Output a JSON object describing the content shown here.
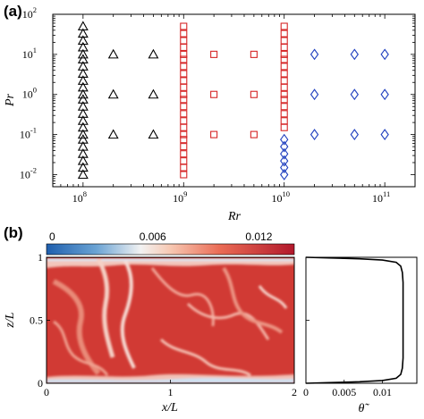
{
  "panel_a_label": "(a)",
  "panel_b_label": "(b)",
  "chart_data": [
    {
      "type": "scatter",
      "xlabel": "Rr",
      "ylabel": "Pr",
      "xscale": "log",
      "yscale": "log",
      "xlim": [
        50000000.0,
        200000000000.0
      ],
      "ylim": [
        0.005,
        100
      ],
      "x_ticks": [
        {
          "exp": "8",
          "value": 100000000.0
        },
        {
          "exp": "9",
          "value": 1000000000.0
        },
        {
          "exp": "10",
          "value": 10000000000.0
        },
        {
          "exp": "11",
          "value": 100000000000.0
        }
      ],
      "y_ticks": [
        {
          "exp": "-2",
          "value": 0.01
        },
        {
          "exp": "-1",
          "value": 0.1
        },
        {
          "exp": "0",
          "value": 1
        },
        {
          "exp": "1",
          "value": 10
        },
        {
          "exp": "2",
          "value": 100
        }
      ],
      "tick_base": "10",
      "grid": false,
      "series": [
        {
          "marker": "triangle",
          "color": "#000000",
          "points": [
            [
              100000000.0,
              0.01
            ],
            [
              100000000.0,
              0.015
            ],
            [
              100000000.0,
              0.022
            ],
            [
              100000000.0,
              0.033
            ],
            [
              100000000.0,
              0.05
            ],
            [
              100000000.0,
              0.075
            ],
            [
              100000000.0,
              0.1
            ],
            [
              100000000.0,
              0.15
            ],
            [
              100000000.0,
              0.22
            ],
            [
              100000000.0,
              0.33
            ],
            [
              100000000.0,
              0.5
            ],
            [
              100000000.0,
              0.75
            ],
            [
              100000000.0,
              1
            ],
            [
              100000000.0,
              1.5
            ],
            [
              100000000.0,
              2.2
            ],
            [
              100000000.0,
              3.3
            ],
            [
              100000000.0,
              5
            ],
            [
              100000000.0,
              7.5
            ],
            [
              100000000.0,
              10
            ],
            [
              100000000.0,
              15
            ],
            [
              100000000.0,
              22
            ],
            [
              100000000.0,
              33
            ],
            [
              100000000.0,
              50
            ],
            [
              200000000.0,
              0.1
            ],
            [
              200000000.0,
              1
            ],
            [
              200000000.0,
              10
            ],
            [
              500000000.0,
              0.1
            ],
            [
              500000000.0,
              1
            ],
            [
              500000000.0,
              10
            ]
          ]
        },
        {
          "marker": "square",
          "color": "#d62728",
          "points": [
            [
              1000000000.0,
              0.01
            ],
            [
              1000000000.0,
              0.015
            ],
            [
              1000000000.0,
              0.022
            ],
            [
              1000000000.0,
              0.033
            ],
            [
              1000000000.0,
              0.05
            ],
            [
              1000000000.0,
              0.075
            ],
            [
              1000000000.0,
              0.1
            ],
            [
              1000000000.0,
              0.15
            ],
            [
              1000000000.0,
              0.22
            ],
            [
              1000000000.0,
              0.33
            ],
            [
              1000000000.0,
              0.5
            ],
            [
              1000000000.0,
              0.75
            ],
            [
              1000000000.0,
              1
            ],
            [
              1000000000.0,
              1.5
            ],
            [
              1000000000.0,
              2.2
            ],
            [
              1000000000.0,
              3.3
            ],
            [
              1000000000.0,
              5
            ],
            [
              1000000000.0,
              7.5
            ],
            [
              1000000000.0,
              10
            ],
            [
              1000000000.0,
              15
            ],
            [
              1000000000.0,
              22
            ],
            [
              1000000000.0,
              33
            ],
            [
              1000000000.0,
              50
            ],
            [
              2000000000.0,
              0.1
            ],
            [
              2000000000.0,
              1
            ],
            [
              2000000000.0,
              10
            ],
            [
              5000000000.0,
              0.1
            ],
            [
              5000000000.0,
              1
            ],
            [
              5000000000.0,
              10
            ],
            [
              10000000000.0,
              0.15
            ],
            [
              10000000000.0,
              0.22
            ],
            [
              10000000000.0,
              0.33
            ],
            [
              10000000000.0,
              0.5
            ],
            [
              10000000000.0,
              0.75
            ],
            [
              10000000000.0,
              1
            ],
            [
              10000000000.0,
              1.5
            ],
            [
              10000000000.0,
              2.2
            ],
            [
              10000000000.0,
              3.3
            ],
            [
              10000000000.0,
              5
            ],
            [
              10000000000.0,
              7.5
            ],
            [
              10000000000.0,
              10
            ],
            [
              10000000000.0,
              15
            ],
            [
              10000000000.0,
              22
            ],
            [
              10000000000.0,
              33
            ],
            [
              10000000000.0,
              50
            ]
          ]
        },
        {
          "marker": "diamond",
          "color": "#1f3fbf",
          "points": [
            [
              10000000000.0,
              0.01
            ],
            [
              10000000000.0,
              0.015
            ],
            [
              10000000000.0,
              0.022
            ],
            [
              10000000000.0,
              0.033
            ],
            [
              10000000000.0,
              0.05
            ],
            [
              10000000000.0,
              0.075
            ],
            [
              20000000000.0,
              0.1
            ],
            [
              20000000000.0,
              1
            ],
            [
              20000000000.0,
              10
            ],
            [
              50000000000.0,
              0.1
            ],
            [
              50000000000.0,
              1
            ],
            [
              50000000000.0,
              10
            ],
            [
              100000000000.0,
              0.1
            ],
            [
              100000000000.0,
              1
            ],
            [
              100000000000.0,
              10
            ]
          ]
        }
      ]
    },
    {
      "type": "heatmap",
      "xlabel": "x/L",
      "ylabel": "z/L",
      "xlim": [
        0,
        2
      ],
      "ylim": [
        0,
        1
      ],
      "x_tick_labels": [
        "0",
        "1",
        "2"
      ],
      "y_tick_labels": [
        "0",
        "0.5",
        "1"
      ],
      "colorbar": {
        "range": [
          0,
          0.014
        ],
        "tick_labels": [
          "0",
          "0.006",
          "0.012"
        ],
        "colormap": "blue-white-red"
      }
    },
    {
      "type": "line",
      "xlabel": "θ̃",
      "ylim": [
        0,
        1
      ],
      "x_tick_labels": [
        "0",
        "0.005",
        "0.01"
      ],
      "xlim": [
        0,
        0.0145
      ],
      "series": [
        {
          "x": [
            0.0,
            0.003,
            0.007,
            0.01,
            0.0118,
            0.0124,
            0.0126,
            0.0127,
            0.0127,
            0.0127,
            0.0127,
            0.0127,
            0.0126,
            0.0124,
            0.0118,
            0.01,
            0.007,
            0.003,
            0.0
          ],
          "y": [
            0.0,
            0.005,
            0.012,
            0.022,
            0.04,
            0.07,
            0.12,
            0.2,
            0.35,
            0.5,
            0.65,
            0.8,
            0.88,
            0.93,
            0.96,
            0.978,
            0.988,
            0.995,
            1.0
          ]
        }
      ]
    }
  ]
}
